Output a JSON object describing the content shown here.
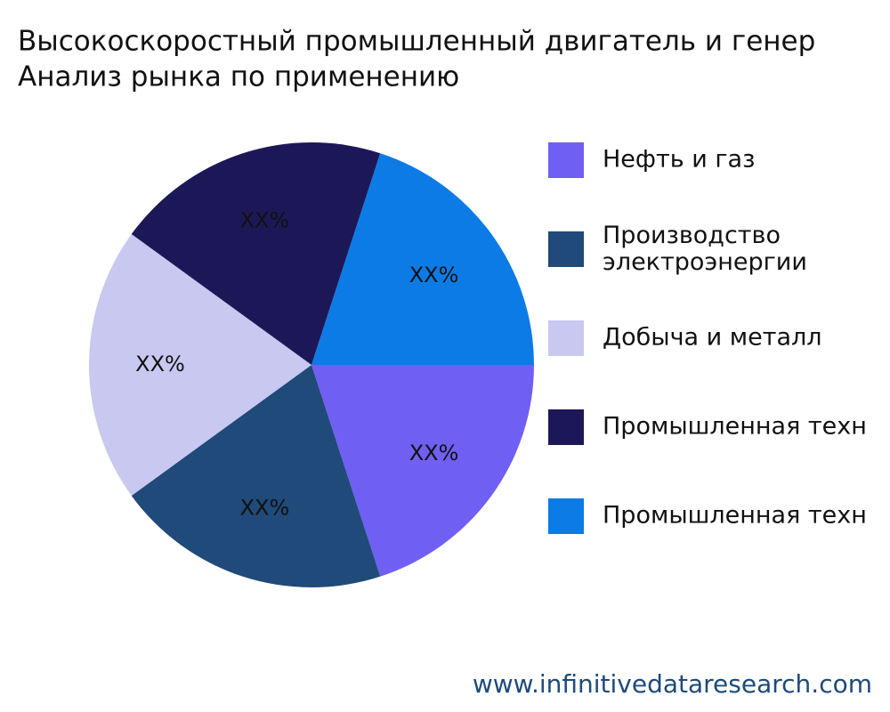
{
  "chart_data": {
    "type": "pie",
    "title": "Высокоскоростный промышленный двигатель и генер",
    "subtitle": "Анализ рынка по применению",
    "categories": [
      "Нефть и газ",
      "Производство электроэнергии",
      "Добыча и металл",
      "Промышленная техн",
      "Промышленная техн"
    ],
    "values": [
      20,
      20,
      20,
      20,
      20
    ],
    "value_labels": [
      "XX%",
      "XX%",
      "XX%",
      "XX%",
      "XX%"
    ],
    "colors": [
      "#6f5ff2",
      "#1f4a7a",
      "#c9c8f0",
      "#1c1858",
      "#0c7be6"
    ],
    "source": "www.infinitivedataresearch.com"
  }
}
